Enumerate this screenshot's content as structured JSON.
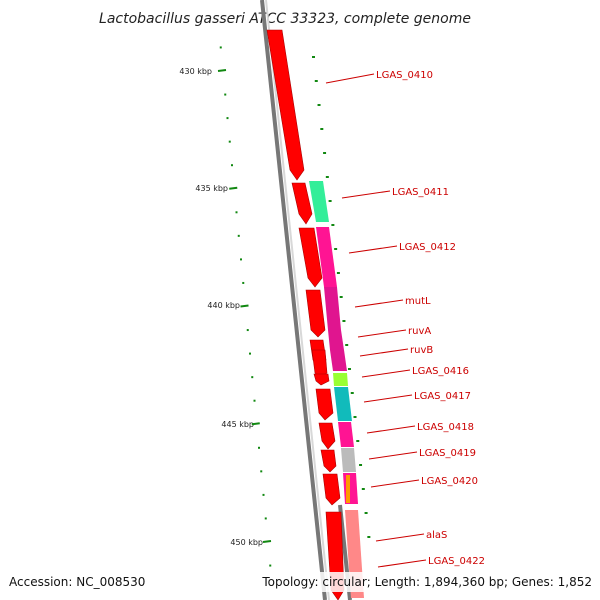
{
  "title": "Lactobacillus gasseri ATCC 33323, complete genome",
  "footer": {
    "accession": "Accession: NC_008530",
    "topology": "Topology: circular; Length: 1,894,360 bp; Genes: 1,852"
  },
  "scale": {
    "unit": "kbp",
    "ticks": [
      {
        "label": "430 kbp",
        "value": 430
      },
      {
        "label": "435 kbp",
        "value": 435
      },
      {
        "label": "440 kbp",
        "value": 440
      },
      {
        "label": "445 kbp",
        "value": 445
      },
      {
        "label": "450 kbp",
        "value": 450
      }
    ]
  },
  "genes": [
    {
      "label": "LGAS_0410",
      "feature_color": "#ff0000"
    },
    {
      "label": "LGAS_0411",
      "feature_color": "#33ee99"
    },
    {
      "label": "LGAS_0412",
      "feature_color": "#ff1493"
    },
    {
      "label": "mutL",
      "feature_color": "#e0158f"
    },
    {
      "label": "ruvA",
      "feature_color": "#e0158f"
    },
    {
      "label": "ruvB",
      "feature_color": "#e0158f"
    },
    {
      "label": "LGAS_0416",
      "feature_color": "#99ff33"
    },
    {
      "label": "LGAS_0417",
      "feature_color": "#11bbbb"
    },
    {
      "label": "LGAS_0418",
      "feature_color": "#ff1493"
    },
    {
      "label": "LGAS_0419",
      "feature_color": "#bbbbbb"
    },
    {
      "label": "LGAS_0420",
      "feature_color": "#ff1493"
    },
    {
      "label": "alaS",
      "feature_color": "#ff8888"
    },
    {
      "label": "LGAS_0422",
      "feature_color": "#ff0000"
    }
  ],
  "colors": {
    "cds": "#ff0000",
    "backbone": "#777777",
    "tick": "#118811",
    "label": "#cc0000"
  }
}
